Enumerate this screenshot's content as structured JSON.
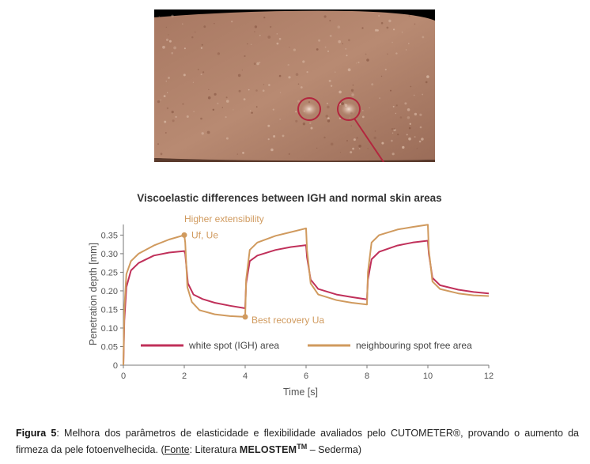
{
  "photo": {
    "alt": "forearm skin with white spots"
  },
  "chart_data": {
    "type": "line",
    "title": "Viscoelastic differences between IGH and normal skin areas",
    "xlabel": "Time [s]",
    "ylabel": "Penetration depth [mm]",
    "xlim": [
      0,
      12
    ],
    "ylim": [
      0,
      0.37
    ],
    "x_ticks": [
      "0",
      "2",
      "4",
      "6",
      "8",
      "10",
      "12"
    ],
    "y_ticks": [
      "0",
      "0.05",
      "0.10",
      "0.15",
      "0.20",
      "0.25",
      "0.30",
      "0.35"
    ],
    "grid": false,
    "legend_position": "bottom-inside",
    "series": [
      {
        "name": "white spot (IGH) area",
        "color": "#c0305a",
        "points": [
          [
            0,
            0
          ],
          [
            0.03,
            0.12
          ],
          [
            0.1,
            0.21
          ],
          [
            0.25,
            0.255
          ],
          [
            0.5,
            0.275
          ],
          [
            1.0,
            0.295
          ],
          [
            1.5,
            0.303
          ],
          [
            2.0,
            0.307
          ],
          [
            2.03,
            0.3
          ],
          [
            2.12,
            0.22
          ],
          [
            2.3,
            0.19
          ],
          [
            2.6,
            0.178
          ],
          [
            3.0,
            0.168
          ],
          [
            3.5,
            0.16
          ],
          [
            4.0,
            0.153
          ],
          [
            4.03,
            0.22
          ],
          [
            4.15,
            0.28
          ],
          [
            4.4,
            0.295
          ],
          [
            5.0,
            0.31
          ],
          [
            5.5,
            0.318
          ],
          [
            6.0,
            0.323
          ],
          [
            6.03,
            0.29
          ],
          [
            6.15,
            0.23
          ],
          [
            6.4,
            0.205
          ],
          [
            7.0,
            0.19
          ],
          [
            7.5,
            0.183
          ],
          [
            8.0,
            0.177
          ],
          [
            8.03,
            0.23
          ],
          [
            8.15,
            0.285
          ],
          [
            8.4,
            0.305
          ],
          [
            9.0,
            0.322
          ],
          [
            9.5,
            0.33
          ],
          [
            10.0,
            0.335
          ],
          [
            10.03,
            0.3
          ],
          [
            10.15,
            0.235
          ],
          [
            10.4,
            0.215
          ],
          [
            11.0,
            0.203
          ],
          [
            11.5,
            0.197
          ],
          [
            12.0,
            0.193
          ]
        ]
      },
      {
        "name": "neighbouring spot free area",
        "color": "#d09a5e",
        "points": [
          [
            0,
            0
          ],
          [
            0.03,
            0.15
          ],
          [
            0.1,
            0.245
          ],
          [
            0.25,
            0.28
          ],
          [
            0.5,
            0.3
          ],
          [
            1.0,
            0.322
          ],
          [
            1.5,
            0.338
          ],
          [
            2.0,
            0.35
          ],
          [
            2.03,
            0.33
          ],
          [
            2.1,
            0.21
          ],
          [
            2.25,
            0.17
          ],
          [
            2.5,
            0.148
          ],
          [
            3.0,
            0.137
          ],
          [
            3.5,
            0.132
          ],
          [
            4.0,
            0.13
          ],
          [
            4.03,
            0.23
          ],
          [
            4.15,
            0.31
          ],
          [
            4.4,
            0.33
          ],
          [
            5.0,
            0.348
          ],
          [
            5.5,
            0.358
          ],
          [
            6.0,
            0.368
          ],
          [
            6.03,
            0.31
          ],
          [
            6.15,
            0.22
          ],
          [
            6.4,
            0.19
          ],
          [
            7.0,
            0.175
          ],
          [
            7.5,
            0.168
          ],
          [
            8.0,
            0.163
          ],
          [
            8.03,
            0.25
          ],
          [
            8.15,
            0.33
          ],
          [
            8.4,
            0.35
          ],
          [
            9.0,
            0.365
          ],
          [
            9.5,
            0.372
          ],
          [
            10.0,
            0.378
          ],
          [
            10.03,
            0.31
          ],
          [
            10.15,
            0.225
          ],
          [
            10.4,
            0.205
          ],
          [
            11.0,
            0.193
          ],
          [
            11.5,
            0.188
          ],
          [
            12.0,
            0.186
          ]
        ]
      }
    ],
    "annotations": [
      {
        "text": "Higher extensibility",
        "anchor_x": 2,
        "anchor_y": 0.35
      },
      {
        "text": "Uf, Ue",
        "anchor_x": 2,
        "anchor_y": 0.35
      },
      {
        "text": "Best recovery Ua",
        "anchor_x": 4,
        "anchor_y": 0.13
      }
    ]
  },
  "caption": {
    "label": "Figura 5",
    "text1": ": Melhora dos parâmetros de elasticidade e flexibilidade avaliados pelo CUTOMETER®, provando o aumento da firmeza da pele fotoenvelhecida. (",
    "fonte": "Fonte",
    "text2": ": Literatura ",
    "brand": "MELOSTEM",
    "tm": "TM",
    "text3": " – Sederma)"
  }
}
